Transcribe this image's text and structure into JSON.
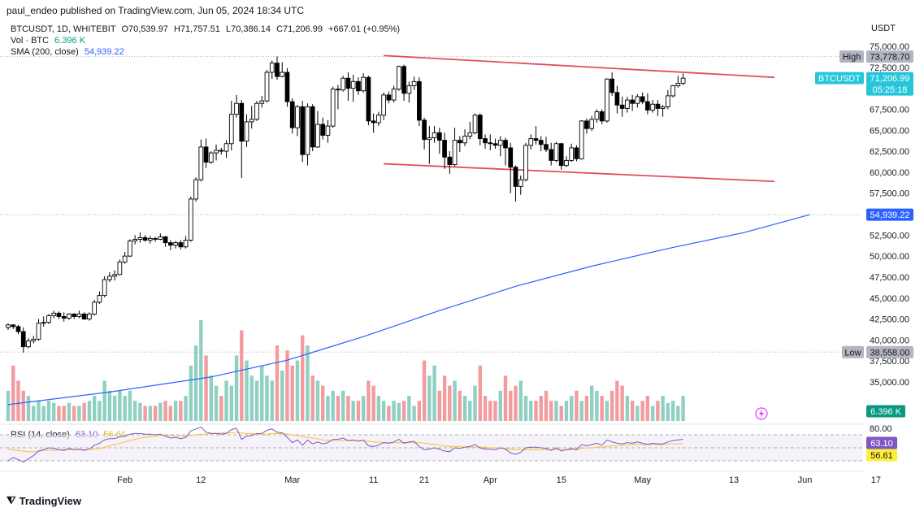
{
  "header": {
    "published": "paul_endeo published on TradingView.com, Jun 05, 2024 18:34 UTC",
    "symbol_line": "BTCUSDT, 1D, WHITEBIT",
    "ohlc": {
      "o": "O70,539.97",
      "h": "H71,757.51",
      "l": "L70,386.14",
      "c": "C71,206.99",
      "chg": "+667.01 (+0.95%)"
    },
    "vol_label": "Vol · BTC",
    "vol_value": "6.396 K",
    "sma_label": "SMA (200, close)",
    "sma_value": "54,939.22",
    "rsi_label": "RSI (14, close)",
    "rsi_value": "63.10",
    "rsi_ma_value": "56.61"
  },
  "brand": "TradingView",
  "colors": {
    "up": "#ffffff",
    "down": "#000000",
    "vol_up": "#8fd0c3",
    "vol_down": "#f29ca0",
    "sma": "#2962ff",
    "channel": "#e04f5f",
    "rsi": "#7e57c2",
    "rsi_ma": "#f9c74f",
    "tag_blue": "#2962ff",
    "tag_cyan": "#26c6da",
    "tag_grey": "#b2b5be",
    "tag_green": "#089981",
    "tag_yellow": "#fdee3c"
  },
  "chart_data": {
    "type": "candlestick",
    "title": "BTCUSDT, 1D, WHITEBIT",
    "currency": "USDT",
    "price_ticks": [
      "75,000.00",
      "72,500.00",
      "67,500.00",
      "65,000.00",
      "62,500.00",
      "60,000.00",
      "57,500.00",
      "52,500.00",
      "50,000.00",
      "47,500.00",
      "45,000.00",
      "42,500.00",
      "40,000.00",
      "37,500.00",
      "35,000.00"
    ],
    "price_tick_values": [
      75000,
      72500,
      67500,
      65000,
      62500,
      60000,
      57500,
      52500,
      50000,
      47500,
      45000,
      42500,
      40000,
      37500,
      35000
    ],
    "time_ticks": [
      "Feb",
      "12",
      "Mar",
      "11",
      "21",
      "Apr",
      "15",
      "May",
      "13",
      "Jun",
      "17"
    ],
    "time_tick_days": [
      23,
      38,
      56,
      72,
      82,
      95,
      109,
      125,
      143,
      157,
      171
    ],
    "rsi_ticks": [
      "80.00"
    ],
    "markers": {
      "high": {
        "label": "High",
        "value": "73,778.70",
        "price": 73778.7
      },
      "low": {
        "label": "Low",
        "value": "38,558.00",
        "price": 38558
      },
      "last": {
        "label": "BTCUSDT",
        "value": "71,206.99",
        "countdown": "05:25:18",
        "price": 71206.99
      },
      "sma": {
        "value": "54,939.22",
        "price": 54939.22
      },
      "volume": {
        "value": "6.396 K"
      },
      "rsi": {
        "value": "63.10"
      },
      "rsi_ma": {
        "value": "56.61"
      }
    },
    "channel_lines": [
      {
        "from": [
          74,
          73900
        ],
        "to": [
          151,
          71300
        ]
      },
      {
        "from": [
          74,
          61000
        ],
        "to": [
          151,
          58900
        ]
      }
    ],
    "sma200": {
      "days": [
        0,
        20,
        40,
        55,
        70,
        85,
        100,
        115,
        130,
        145,
        158
      ],
      "values": [
        32300,
        33800,
        35600,
        37600,
        40400,
        43500,
        46400,
        48800,
        50900,
        52800,
        54939
      ]
    },
    "candles": [
      [
        41500,
        42000,
        41200,
        41800
      ],
      [
        41800,
        41900,
        41300,
        41600
      ],
      [
        41600,
        41800,
        40700,
        41000
      ],
      [
        41000,
        41500,
        38500,
        39200
      ],
      [
        39200,
        40200,
        39000,
        39900
      ],
      [
        39900,
        40500,
        39600,
        40100
      ],
      [
        40100,
        42500,
        39900,
        42000
      ],
      [
        42000,
        42800,
        41600,
        42100
      ],
      [
        42100,
        43100,
        41900,
        42900
      ],
      [
        42900,
        43500,
        42600,
        43200
      ],
      [
        43200,
        43400,
        42500,
        42800
      ],
      [
        42800,
        43300,
        42200,
        42600
      ],
      [
        42600,
        43200,
        42400,
        43100
      ],
      [
        43100,
        43200,
        42500,
        42800
      ],
      [
        42800,
        43500,
        42600,
        43100
      ],
      [
        43100,
        43300,
        42400,
        42500
      ],
      [
        42500,
        43300,
        42300,
        43100
      ],
      [
        43100,
        44800,
        42900,
        44500
      ],
      [
        44500,
        45800,
        44300,
        45300
      ],
      [
        45300,
        47600,
        45100,
        47200
      ],
      [
        47200,
        48100,
        46900,
        47600
      ],
      [
        47600,
        48300,
        47100,
        47800
      ],
      [
        47800,
        49600,
        47700,
        49300
      ],
      [
        49300,
        50500,
        49100,
        50000
      ],
      [
        50000,
        52000,
        49900,
        51800
      ],
      [
        51800,
        52500,
        51400,
        52000
      ],
      [
        52000,
        52800,
        51600,
        52200
      ],
      [
        52200,
        52500,
        51700,
        51900
      ],
      [
        51900,
        52400,
        51500,
        52100
      ],
      [
        52100,
        52300,
        51700,
        52000
      ],
      [
        52000,
        52700,
        51900,
        52300
      ],
      [
        52300,
        52400,
        51100,
        51600
      ],
      [
        51600,
        51900,
        50700,
        51300
      ],
      [
        51300,
        51800,
        50900,
        51600
      ],
      [
        51600,
        51900,
        50800,
        51100
      ],
      [
        51100,
        52400,
        50900,
        51900
      ],
      [
        51900,
        57100,
        51700,
        56800
      ],
      [
        56800,
        59400,
        56500,
        59100
      ],
      [
        59100,
        63900,
        58900,
        63000
      ],
      [
        63000,
        64000,
        60500,
        61200
      ],
      [
        61200,
        62500,
        61000,
        62300
      ],
      [
        62300,
        63300,
        61400,
        62600
      ],
      [
        62600,
        62900,
        62100,
        62500
      ],
      [
        62500,
        63800,
        61700,
        63400
      ],
      [
        63400,
        68500,
        62600,
        66900
      ],
      [
        66900,
        69200,
        66500,
        68200
      ],
      [
        68200,
        68600,
        59300,
        63700
      ],
      [
        63700,
        66900,
        63000,
        66000
      ],
      [
        66000,
        67900,
        65200,
        66300
      ],
      [
        66300,
        68500,
        66100,
        68200
      ],
      [
        68200,
        69100,
        67700,
        68500
      ],
      [
        68500,
        72200,
        68300,
        71900
      ],
      [
        71900,
        73300,
        71100,
        73000
      ],
      [
        73000,
        73800,
        71000,
        71400
      ],
      [
        71400,
        73100,
        71300,
        71900
      ],
      [
        71900,
        72400,
        67800,
        68400
      ],
      [
        68400,
        68800,
        64600,
        65300
      ],
      [
        65300,
        68000,
        64300,
        67800
      ],
      [
        67800,
        68500,
        61200,
        62100
      ],
      [
        62100,
        68200,
        60800,
        67800
      ],
      [
        67800,
        68100,
        62500,
        63000
      ],
      [
        63000,
        67300,
        62900,
        65700
      ],
      [
        65700,
        66500,
        63900,
        64400
      ],
      [
        64400,
        66200,
        63500,
        65500
      ],
      [
        65500,
        70200,
        65300,
        69900
      ],
      [
        69900,
        70400,
        67500,
        69800
      ],
      [
        69800,
        71500,
        69600,
        71200
      ],
      [
        71200,
        71900,
        68500,
        70000
      ],
      [
        70000,
        71600,
        68400,
        70800
      ],
      [
        70800,
        71300,
        69200,
        69700
      ],
      [
        69700,
        71800,
        69500,
        71300
      ],
      [
        71300,
        71500,
        65600,
        66100
      ],
      [
        66100,
        67000,
        64700,
        65900
      ],
      [
        65900,
        67200,
        65500,
        66800
      ],
      [
        66800,
        69500,
        66200,
        69200
      ],
      [
        69200,
        69600,
        68200,
        68600
      ],
      [
        68600,
        70300,
        68300,
        69900
      ],
      [
        69900,
        72700,
        69700,
        72600
      ],
      [
        72600,
        72800,
        68500,
        69400
      ],
      [
        69400,
        70800,
        68300,
        70300
      ],
      [
        70300,
        71400,
        69800,
        70800
      ],
      [
        70800,
        71300,
        65500,
        66200
      ],
      [
        66200,
        66500,
        62700,
        63900
      ],
      [
        63900,
        65500,
        61000,
        64100
      ],
      [
        64100,
        65500,
        63500,
        64700
      ],
      [
        64700,
        65300,
        62200,
        63800
      ],
      [
        63800,
        64700,
        60400,
        61800
      ],
      [
        61800,
        62500,
        59800,
        60900
      ],
      [
        60900,
        65300,
        60700,
        63800
      ],
      [
        63800,
        64300,
        62400,
        63500
      ],
      [
        63500,
        65100,
        63100,
        64300
      ],
      [
        64300,
        66000,
        63900,
        64700
      ],
      [
        64700,
        67000,
        64500,
        66800
      ],
      [
        66800,
        67000,
        63200,
        64000
      ],
      [
        64000,
        64500,
        62800,
        63500
      ],
      [
        63500,
        64500,
        62600,
        63400
      ],
      [
        63400,
        64000,
        62800,
        63200
      ],
      [
        63200,
        64300,
        61900,
        63800
      ],
      [
        63800,
        64100,
        60800,
        62900
      ],
      [
        62900,
        63500,
        57500,
        60600
      ],
      [
        60600,
        60800,
        56500,
        58300
      ],
      [
        58300,
        59600,
        57300,
        59100
      ],
      [
        59100,
        63500,
        58900,
        63200
      ],
      [
        63200,
        64500,
        62700,
        64000
      ],
      [
        64000,
        65500,
        63300,
        63800
      ],
      [
        63800,
        64300,
        62500,
        63300
      ],
      [
        63300,
        64200,
        62400,
        62700
      ],
      [
        62700,
        63500,
        60800,
        61400
      ],
      [
        61400,
        63600,
        61200,
        63400
      ],
      [
        63400,
        63500,
        60300,
        60800
      ],
      [
        60800,
        61900,
        60600,
        61400
      ],
      [
        61400,
        63400,
        61200,
        62900
      ],
      [
        62900,
        63200,
        61300,
        61600
      ],
      [
        61600,
        66200,
        61500,
        66100
      ],
      [
        66100,
        66400,
        64600,
        65200
      ],
      [
        65200,
        66700,
        64900,
        66300
      ],
      [
        66300,
        67500,
        65900,
        67200
      ],
      [
        67200,
        67500,
        65700,
        66100
      ],
      [
        66100,
        71200,
        65900,
        71100
      ],
      [
        71100,
        71900,
        69100,
        69500
      ],
      [
        69500,
        70300,
        67000,
        68000
      ],
      [
        68000,
        69000,
        66600,
        67600
      ],
      [
        67600,
        69000,
        67100,
        68600
      ],
      [
        68600,
        69200,
        67300,
        68200
      ],
      [
        68200,
        69300,
        67700,
        69000
      ],
      [
        69000,
        69500,
        68100,
        68400
      ],
      [
        68400,
        69400,
        66900,
        67400
      ],
      [
        67400,
        68600,
        67100,
        68100
      ],
      [
        68100,
        68600,
        66700,
        67600
      ],
      [
        67600,
        68000,
        66600,
        67800
      ],
      [
        67800,
        69800,
        67500,
        69100
      ],
      [
        69100,
        70400,
        68900,
        70300
      ],
      [
        70300,
        71500,
        70100,
        70600
      ],
      [
        70600,
        71757,
        70386,
        71207
      ]
    ],
    "volume_rel": [
      0.3,
      0.55,
      0.4,
      0.3,
      0.25,
      0.15,
      0.2,
      0.15,
      0.2,
      0.18,
      0.15,
      0.15,
      0.18,
      0.15,
      0.15,
      0.18,
      0.2,
      0.25,
      0.2,
      0.4,
      0.3,
      0.25,
      0.3,
      0.25,
      0.3,
      0.2,
      0.18,
      0.15,
      0.15,
      0.15,
      0.18,
      0.2,
      0.15,
      0.2,
      0.2,
      0.25,
      0.55,
      0.75,
      1.0,
      0.65,
      0.45,
      0.35,
      0.25,
      0.4,
      0.35,
      0.65,
      0.9,
      0.6,
      0.45,
      0.4,
      0.55,
      0.45,
      0.4,
      0.75,
      0.5,
      0.7,
      0.55,
      0.6,
      0.85,
      0.75,
      0.45,
      0.4,
      0.35,
      0.25,
      0.3,
      0.25,
      0.3,
      0.25,
      0.2,
      0.2,
      0.25,
      0.4,
      0.35,
      0.25,
      0.2,
      0.15,
      0.2,
      0.18,
      0.2,
      0.25,
      0.15,
      0.2,
      0.6,
      0.45,
      0.55,
      0.3,
      0.45,
      0.35,
      0.4,
      0.3,
      0.25,
      0.2,
      0.35,
      0.55,
      0.25,
      0.2,
      0.2,
      0.3,
      0.45,
      0.3,
      0.35,
      0.4,
      0.25,
      0.2,
      0.2,
      0.25,
      0.3,
      0.2,
      0.2,
      0.15,
      0.2,
      0.25,
      0.3,
      0.2,
      0.25,
      0.35,
      0.3,
      0.25,
      0.2,
      0.3,
      0.4,
      0.35,
      0.25,
      0.2,
      0.15,
      0.2,
      0.25,
      0.15,
      0.2,
      0.25,
      0.18,
      0.2,
      0.15,
      0.25
    ],
    "rsi": [
      30,
      35,
      32,
      28,
      33,
      38,
      45,
      47,
      50,
      49,
      47,
      46,
      49,
      47,
      48,
      46,
      48,
      54,
      57,
      62,
      64,
      64,
      67,
      68,
      71,
      72,
      72,
      71,
      71,
      70,
      71,
      68,
      65,
      66,
      64,
      66,
      76,
      79,
      82,
      74,
      72,
      72,
      71,
      72,
      78,
      80,
      63,
      68,
      69,
      72,
      72,
      77,
      79,
      74,
      73,
      66,
      58,
      62,
      54,
      62,
      56,
      59,
      56,
      58,
      63,
      63,
      65,
      61,
      62,
      60,
      62,
      53,
      52,
      54,
      58,
      57,
      59,
      63,
      57,
      59,
      60,
      52,
      47,
      48,
      50,
      48,
      45,
      44,
      50,
      49,
      51,
      52,
      55,
      50,
      48,
      48,
      47,
      50,
      48,
      42,
      40,
      43,
      50,
      51,
      51,
      50,
      49,
      46,
      50,
      45,
      47,
      49,
      47,
      55,
      53,
      55,
      57,
      54,
      62,
      59,
      57,
      56,
      58,
      57,
      59,
      57,
      55,
      57,
      56,
      56,
      59,
      61,
      62,
      63.1
    ],
    "rsi_ma": [
      48,
      47,
      46,
      45,
      44,
      44,
      45,
      46,
      46,
      46,
      47,
      47,
      47,
      47,
      47,
      47,
      48,
      48,
      49,
      51,
      53,
      55,
      57,
      59,
      61,
      63,
      65,
      66,
      67,
      68,
      69,
      69,
      69,
      68,
      68,
      68,
      69,
      70,
      71,
      71,
      72,
      72,
      73,
      73,
      73,
      74,
      73,
      72,
      72,
      71,
      71,
      71,
      72,
      72,
      72,
      71,
      70,
      69,
      67,
      66,
      65,
      64,
      62,
      61,
      61,
      61,
      61,
      61,
      61,
      61,
      61,
      60,
      59,
      59,
      58,
      58,
      58,
      58,
      58,
      58,
      58,
      58,
      57,
      56,
      55,
      54,
      53,
      52,
      52,
      52,
      51,
      51,
      51,
      51,
      51,
      50,
      50,
      50,
      49,
      48,
      47,
      47,
      47,
      47,
      47,
      47,
      47,
      47,
      47,
      47,
      47,
      47,
      48,
      49,
      50,
      50,
      51,
      51,
      52,
      53,
      53,
      54,
      54,
      55,
      55,
      55,
      55,
      55,
      55,
      55,
      56,
      56,
      56,
      56.61
    ]
  }
}
